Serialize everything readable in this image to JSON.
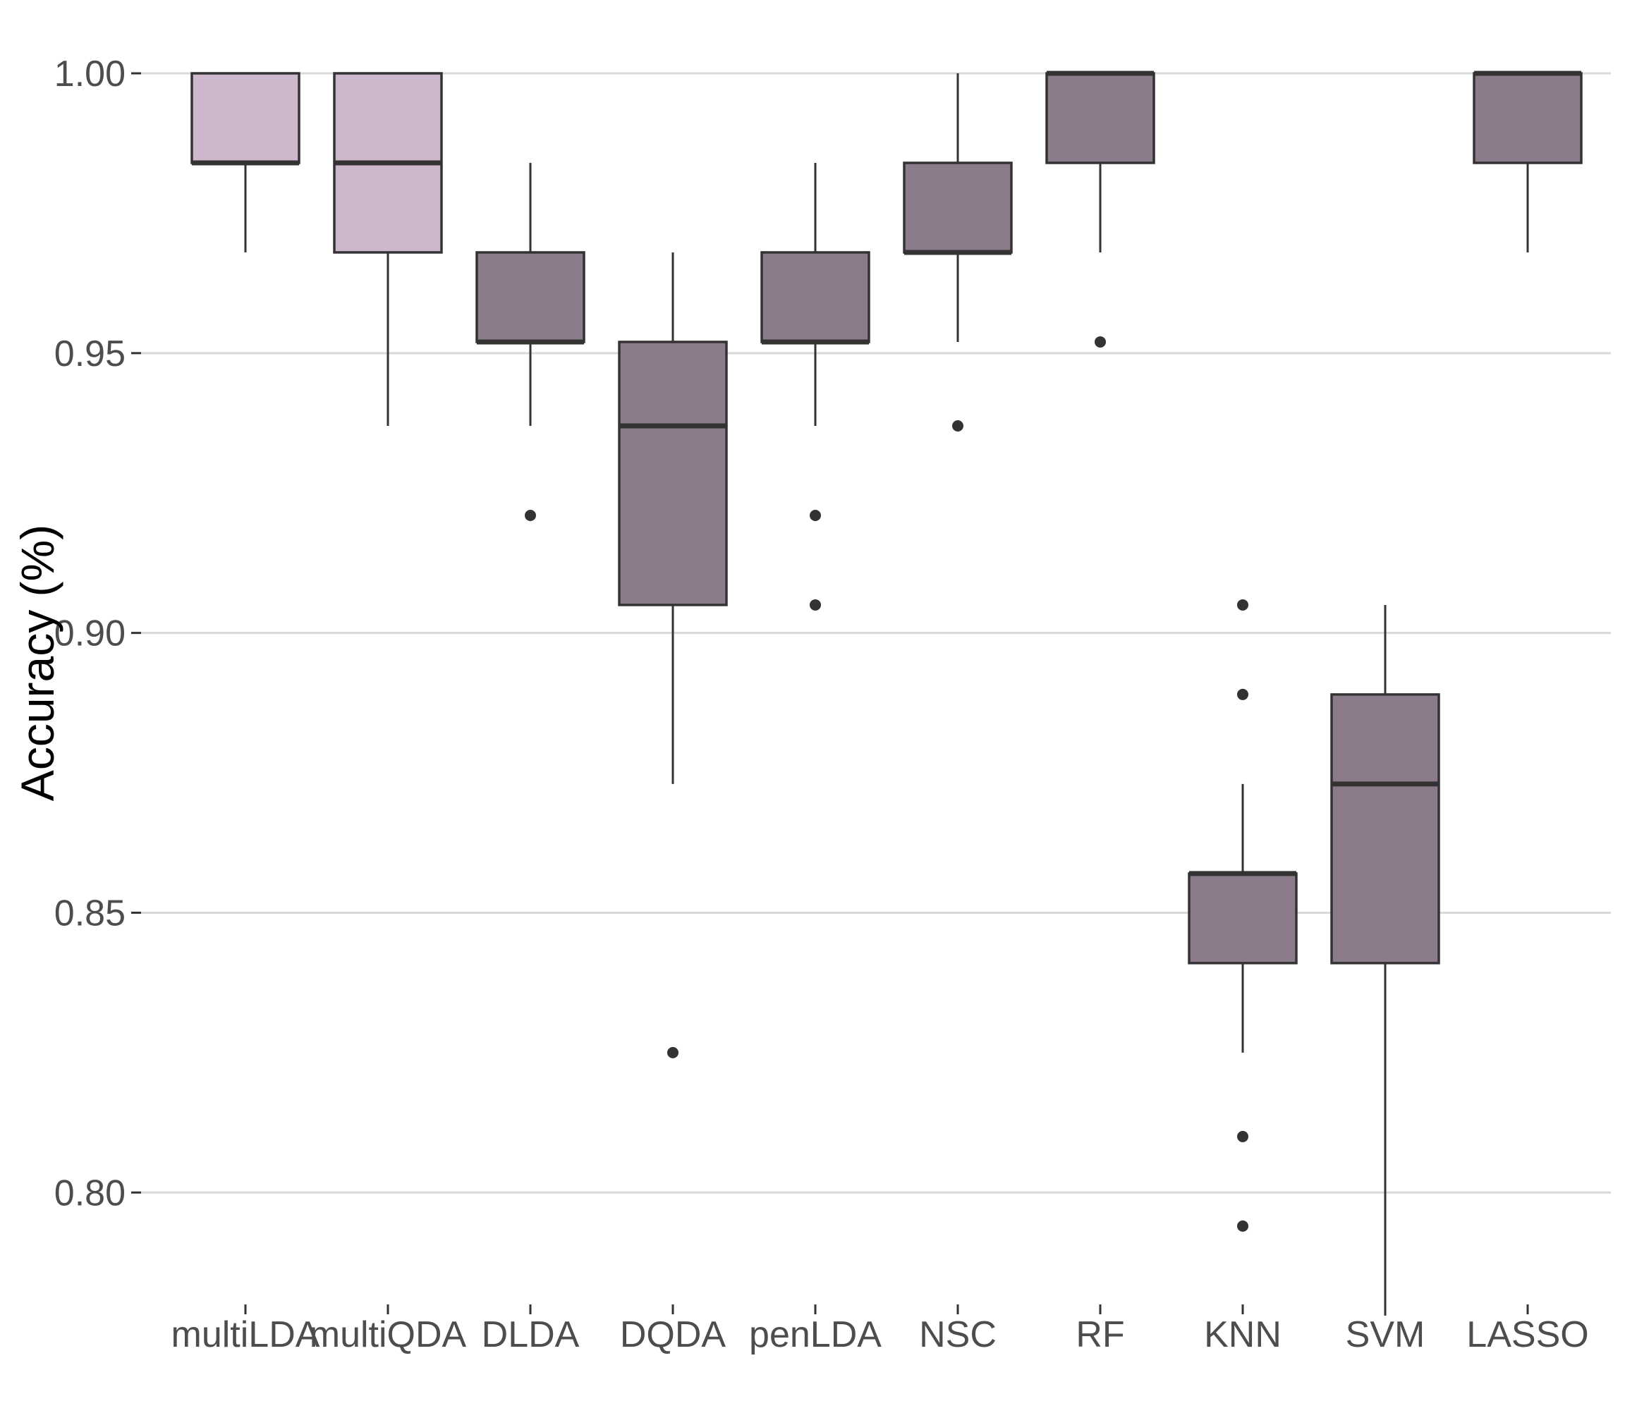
{
  "chart_data": {
    "type": "boxplot",
    "title": "",
    "xlabel": "",
    "ylabel": "Accuracy (%)",
    "ylim": [
      0.765,
      1.0
    ],
    "yticks": [
      0.8,
      0.85,
      0.9,
      0.95,
      1.0
    ],
    "ytick_labels": [
      "0.80",
      "0.85",
      "0.90",
      "0.95",
      "1.00"
    ],
    "grid": true,
    "legend": "none",
    "categories": [
      "multiLDA",
      "multiQDA",
      "DLDA",
      "DQDA",
      "penLDA",
      "NSC",
      "RF",
      "KNN",
      "SVM",
      "LASSO"
    ],
    "colors": {
      "light": "#ccb7cc",
      "dark": "#8b7b8b",
      "outline": "#333333",
      "grid": "#d9d9d9"
    },
    "boxes": [
      {
        "category": "multiLDA",
        "fill": "light",
        "whisker_low": 0.968,
        "q1": 0.984,
        "median": 0.984,
        "q3": 1.0,
        "whisker_high": 1.0,
        "outliers": []
      },
      {
        "category": "multiQDA",
        "fill": "light",
        "whisker_low": 0.937,
        "q1": 0.968,
        "median": 0.984,
        "q3": 1.0,
        "whisker_high": 1.0,
        "outliers": []
      },
      {
        "category": "DLDA",
        "fill": "dark",
        "whisker_low": 0.937,
        "q1": 0.952,
        "median": 0.952,
        "q3": 0.968,
        "whisker_high": 0.984,
        "outliers": [
          0.921
        ]
      },
      {
        "category": "DQDA",
        "fill": "dark",
        "whisker_low": 0.873,
        "q1": 0.905,
        "median": 0.937,
        "q3": 0.952,
        "whisker_high": 0.968,
        "outliers": [
          0.825
        ]
      },
      {
        "category": "penLDA",
        "fill": "dark",
        "whisker_low": 0.937,
        "q1": 0.952,
        "median": 0.952,
        "q3": 0.968,
        "whisker_high": 0.984,
        "outliers": [
          0.921,
          0.905
        ]
      },
      {
        "category": "NSC",
        "fill": "dark",
        "whisker_low": 0.952,
        "q1": 0.968,
        "median": 0.968,
        "q3": 0.984,
        "whisker_high": 1.0,
        "outliers": [
          0.937
        ]
      },
      {
        "category": "RF",
        "fill": "dark",
        "whisker_low": 0.968,
        "q1": 0.984,
        "median": 1.0,
        "q3": 1.0,
        "whisker_high": 1.0,
        "outliers": [
          0.952
        ]
      },
      {
        "category": "KNN",
        "fill": "dark",
        "whisker_low": 0.825,
        "q1": 0.841,
        "median": 0.857,
        "q3": 0.857,
        "whisker_high": 0.873,
        "outliers": [
          0.905,
          0.889,
          0.81,
          0.794
        ]
      },
      {
        "category": "SVM",
        "fill": "dark",
        "whisker_low": 0.778,
        "q1": 0.841,
        "median": 0.873,
        "q3": 0.889,
        "whisker_high": 0.905,
        "outliers": []
      },
      {
        "category": "LASSO",
        "fill": "dark",
        "whisker_low": 0.968,
        "q1": 0.984,
        "median": 1.0,
        "q3": 1.0,
        "whisker_high": 1.0,
        "outliers": []
      }
    ]
  }
}
